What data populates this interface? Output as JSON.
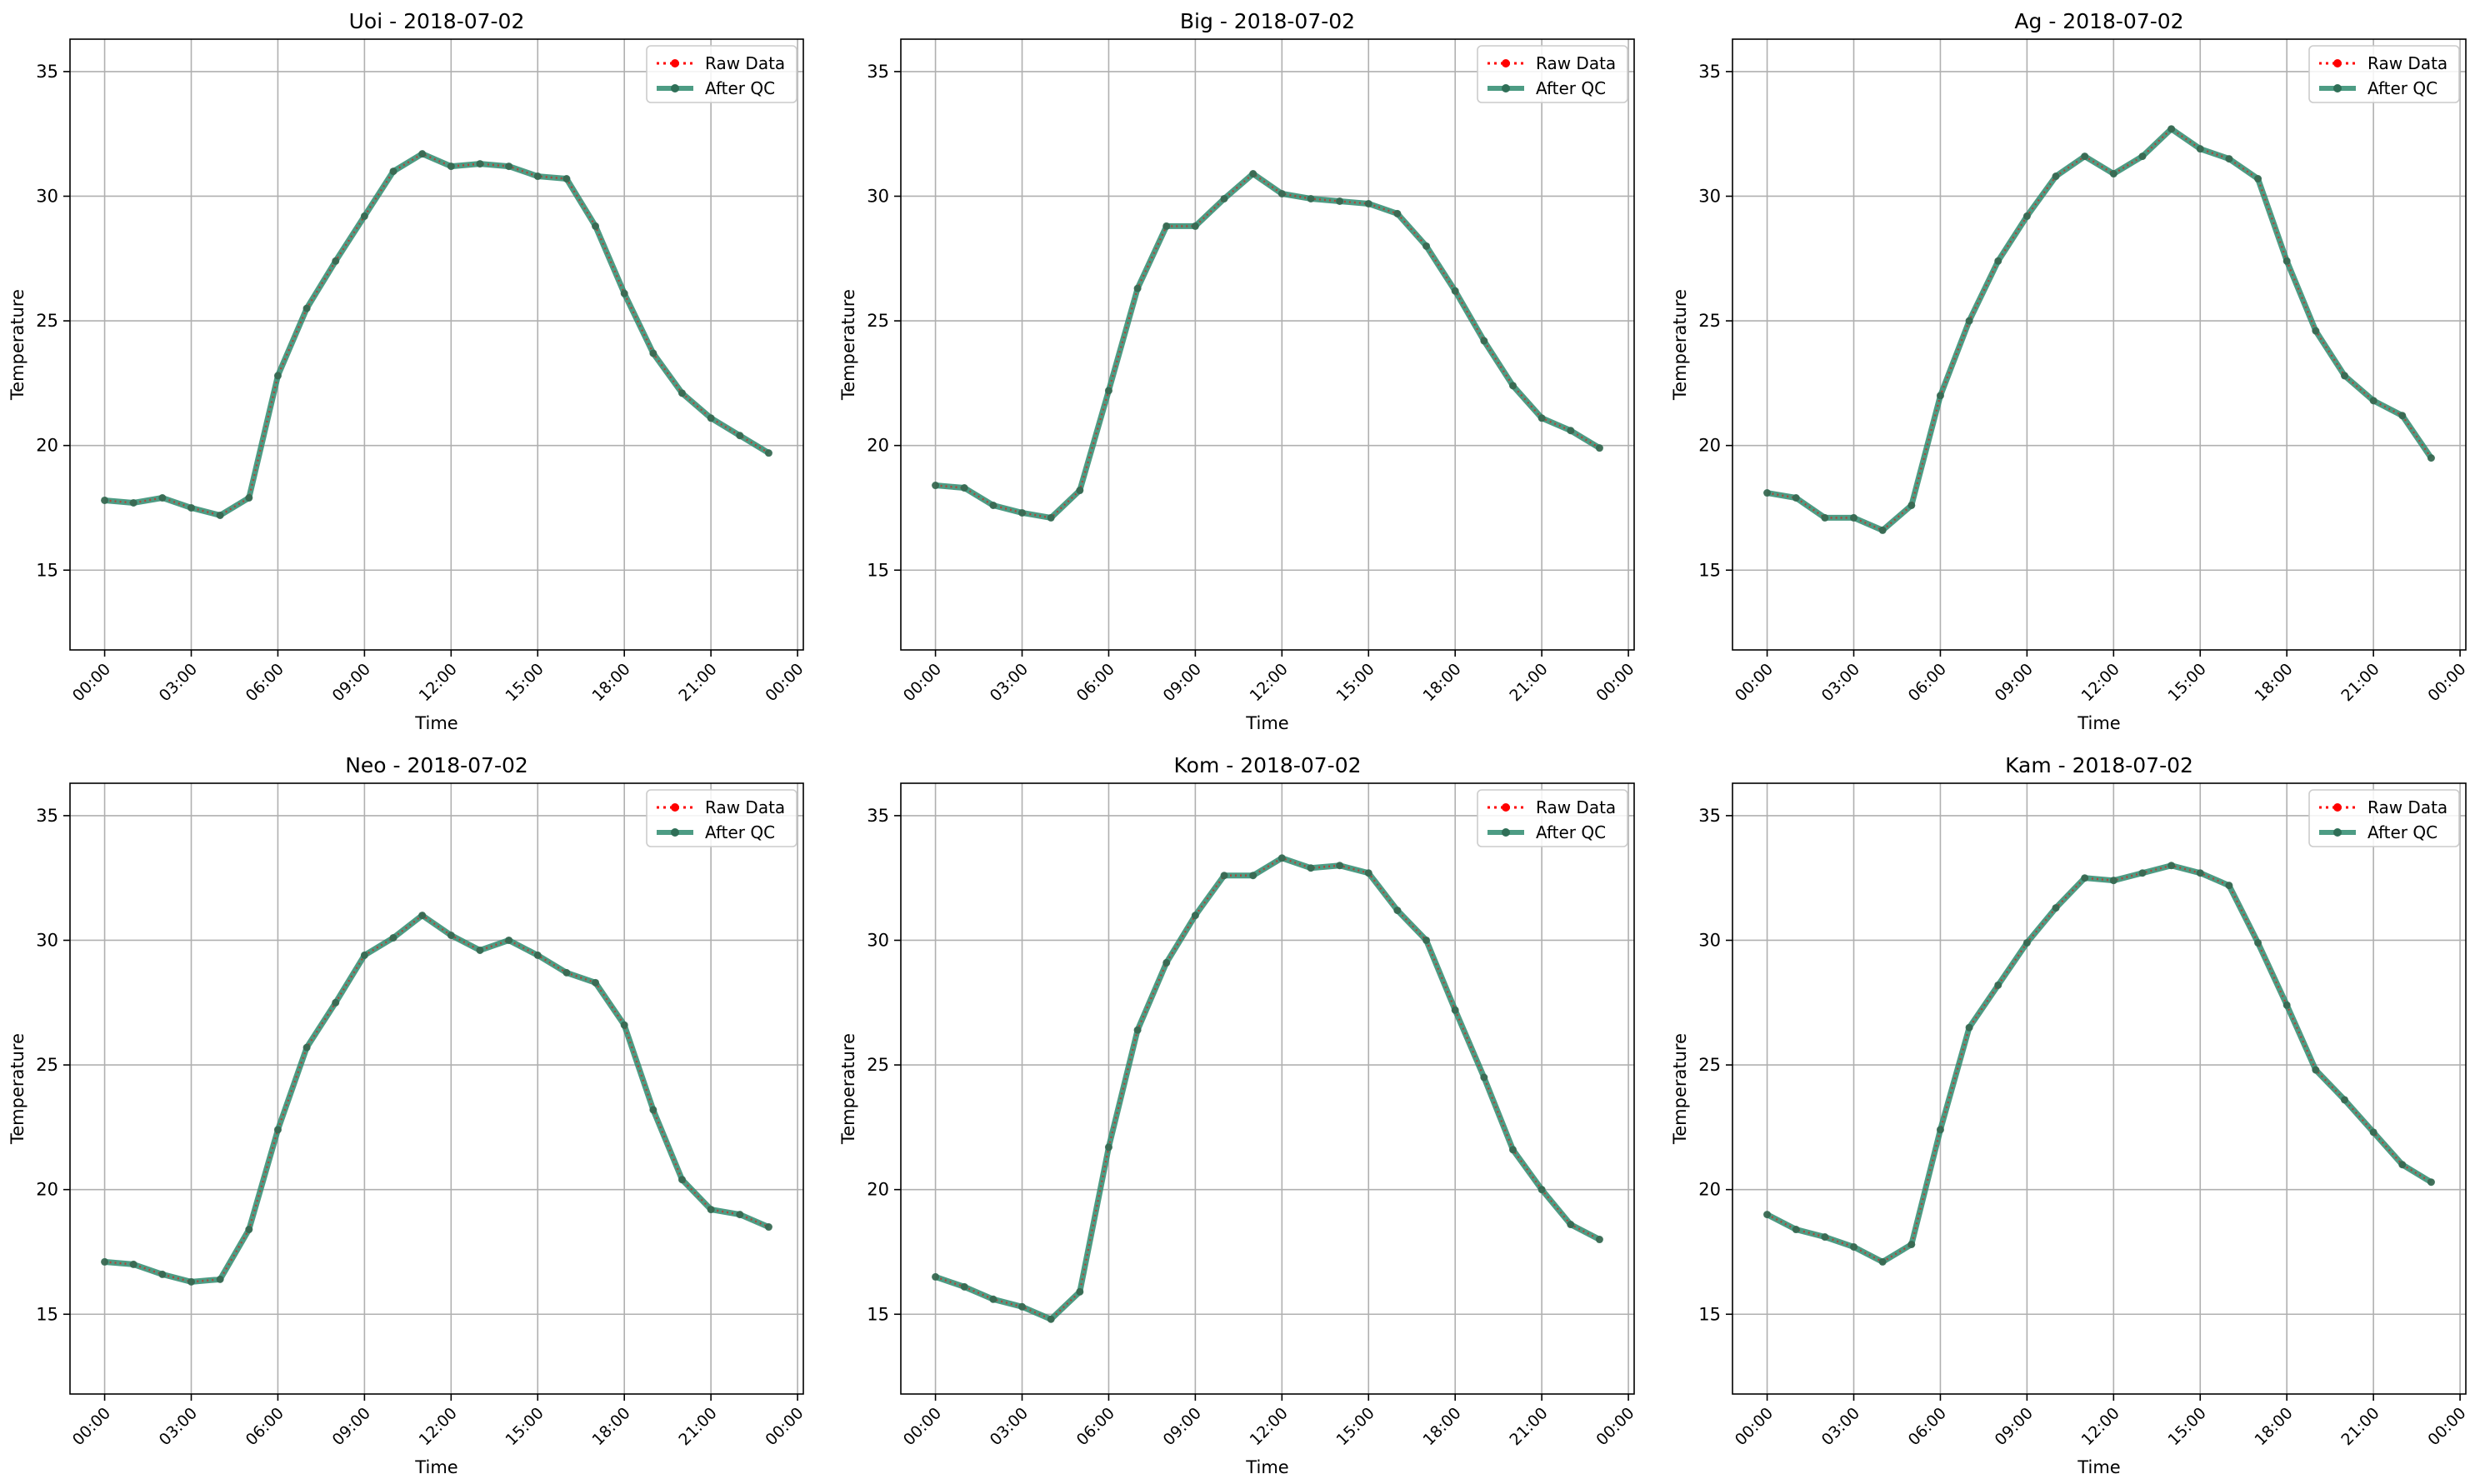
{
  "figure": {
    "legend": {
      "raw_label": "Raw Data",
      "qc_label": "After QC"
    },
    "colors": {
      "raw": "#ff0000",
      "qc": "#2e8b6e",
      "qc_marker": "#2f6f57",
      "grid": "#b0b0b0",
      "axes": "#000000"
    }
  },
  "chart_data": [
    {
      "type": "line",
      "title": "Uoi - 2018-07-02",
      "xlabel": "Time",
      "ylabel": "Temperature",
      "x_ticks": [
        "00:00",
        "03:00",
        "06:00",
        "09:00",
        "12:00",
        "15:00",
        "18:00",
        "21:00",
        "00:00"
      ],
      "y_ticks": [
        "15",
        "20",
        "25",
        "30",
        "35"
      ],
      "xlim": [
        -1.2,
        24.2
      ],
      "ylim": [
        11.8,
        36.3
      ],
      "grid": true,
      "legend_position": "top-right",
      "x": [
        0,
        1,
        2,
        3,
        4,
        5,
        6,
        7,
        8,
        9,
        10,
        11,
        12,
        13,
        14,
        15,
        16,
        17,
        18,
        19,
        20,
        21,
        22,
        23
      ],
      "series": [
        {
          "name": "Raw Data",
          "values": [
            17.8,
            17.7,
            17.9,
            17.5,
            17.2,
            17.9,
            22.8,
            25.5,
            27.4,
            29.2,
            31.0,
            31.7,
            31.2,
            31.3,
            31.2,
            30.8,
            30.7,
            28.8,
            26.1,
            23.7,
            22.1,
            21.1,
            20.4,
            19.7
          ]
        },
        {
          "name": "After QC",
          "values": [
            17.8,
            17.7,
            17.9,
            17.5,
            17.2,
            17.9,
            22.8,
            25.5,
            27.4,
            29.2,
            31.0,
            31.7,
            31.2,
            31.3,
            31.2,
            30.8,
            30.7,
            28.8,
            26.1,
            23.7,
            22.1,
            21.1,
            20.4,
            19.7
          ]
        }
      ]
    },
    {
      "type": "line",
      "title": "Big - 2018-07-02",
      "xlabel": "Time",
      "ylabel": "Temperature",
      "x_ticks": [
        "00:00",
        "03:00",
        "06:00",
        "09:00",
        "12:00",
        "15:00",
        "18:00",
        "21:00",
        "00:00"
      ],
      "y_ticks": [
        "15",
        "20",
        "25",
        "30",
        "35"
      ],
      "xlim": [
        -1.2,
        24.2
      ],
      "ylim": [
        11.8,
        36.3
      ],
      "grid": true,
      "legend_position": "top-right",
      "x": [
        0,
        1,
        2,
        3,
        4,
        5,
        6,
        7,
        8,
        9,
        10,
        11,
        12,
        13,
        14,
        15,
        16,
        17,
        18,
        19,
        20,
        21,
        22,
        23
      ],
      "series": [
        {
          "name": "Raw Data",
          "values": [
            18.4,
            18.3,
            17.6,
            17.3,
            17.1,
            18.2,
            22.2,
            26.3,
            28.8,
            28.8,
            29.9,
            30.9,
            30.1,
            29.9,
            29.8,
            29.7,
            29.3,
            28.0,
            26.2,
            24.2,
            22.4,
            21.1,
            20.6,
            19.9
          ]
        },
        {
          "name": "After QC",
          "values": [
            18.4,
            18.3,
            17.6,
            17.3,
            17.1,
            18.2,
            22.2,
            26.3,
            28.8,
            28.8,
            29.9,
            30.9,
            30.1,
            29.9,
            29.8,
            29.7,
            29.3,
            28.0,
            26.2,
            24.2,
            22.4,
            21.1,
            20.6,
            19.9
          ]
        }
      ]
    },
    {
      "type": "line",
      "title": "Ag - 2018-07-02",
      "xlabel": "Time",
      "ylabel": "Temperature",
      "x_ticks": [
        "00:00",
        "03:00",
        "06:00",
        "09:00",
        "12:00",
        "15:00",
        "18:00",
        "21:00",
        "00:00"
      ],
      "y_ticks": [
        "15",
        "20",
        "25",
        "30",
        "35"
      ],
      "xlim": [
        -1.2,
        24.2
      ],
      "ylim": [
        11.8,
        36.3
      ],
      "grid": true,
      "legend_position": "top-right",
      "x": [
        0,
        1,
        2,
        3,
        4,
        5,
        6,
        7,
        8,
        9,
        10,
        11,
        12,
        13,
        14,
        15,
        16,
        17,
        18,
        19,
        20,
        21,
        22,
        23
      ],
      "series": [
        {
          "name": "Raw Data",
          "values": [
            18.1,
            17.9,
            17.1,
            17.1,
            16.6,
            17.6,
            22.0,
            25.0,
            27.4,
            29.2,
            30.8,
            31.6,
            30.9,
            31.6,
            32.7,
            31.9,
            31.5,
            30.7,
            27.4,
            24.6,
            22.8,
            21.8,
            21.2,
            19.5
          ]
        },
        {
          "name": "After QC",
          "values": [
            18.1,
            17.9,
            17.1,
            17.1,
            16.6,
            17.6,
            22.0,
            25.0,
            27.4,
            29.2,
            30.8,
            31.6,
            30.9,
            31.6,
            32.7,
            31.9,
            31.5,
            30.7,
            27.4,
            24.6,
            22.8,
            21.8,
            21.2,
            19.5
          ]
        }
      ]
    },
    {
      "type": "line",
      "title": "Neo - 2018-07-02",
      "xlabel": "Time",
      "ylabel": "Temperature",
      "x_ticks": [
        "00:00",
        "03:00",
        "06:00",
        "09:00",
        "12:00",
        "15:00",
        "18:00",
        "21:00",
        "00:00"
      ],
      "y_ticks": [
        "15",
        "20",
        "25",
        "30",
        "35"
      ],
      "xlim": [
        -1.2,
        24.2
      ],
      "ylim": [
        11.8,
        36.3
      ],
      "grid": true,
      "legend_position": "top-right",
      "x": [
        0,
        1,
        2,
        3,
        4,
        5,
        6,
        7,
        8,
        9,
        10,
        11,
        12,
        13,
        14,
        15,
        16,
        17,
        18,
        19,
        20,
        21,
        22,
        23
      ],
      "series": [
        {
          "name": "Raw Data",
          "values": [
            17.1,
            17.0,
            16.6,
            16.3,
            16.4,
            18.4,
            22.4,
            25.7,
            27.5,
            29.4,
            30.1,
            31.0,
            30.2,
            29.6,
            30.0,
            29.4,
            28.7,
            28.3,
            26.6,
            23.2,
            20.4,
            19.2,
            19.0,
            18.5
          ]
        },
        {
          "name": "After QC",
          "values": [
            17.1,
            17.0,
            16.6,
            16.3,
            16.4,
            18.4,
            22.4,
            25.7,
            27.5,
            29.4,
            30.1,
            31.0,
            30.2,
            29.6,
            30.0,
            29.4,
            28.7,
            28.3,
            26.6,
            23.2,
            20.4,
            19.2,
            19.0,
            18.5
          ]
        }
      ]
    },
    {
      "type": "line",
      "title": "Kom - 2018-07-02",
      "xlabel": "Time",
      "ylabel": "Temperature",
      "x_ticks": [
        "00:00",
        "03:00",
        "06:00",
        "09:00",
        "12:00",
        "15:00",
        "18:00",
        "21:00",
        "00:00"
      ],
      "y_ticks": [
        "15",
        "20",
        "25",
        "30",
        "35"
      ],
      "xlim": [
        -1.2,
        24.2
      ],
      "ylim": [
        11.8,
        36.3
      ],
      "grid": true,
      "legend_position": "top-right",
      "x": [
        0,
        1,
        2,
        3,
        4,
        5,
        6,
        7,
        8,
        9,
        10,
        11,
        12,
        13,
        14,
        15,
        16,
        17,
        18,
        19,
        20,
        21,
        22,
        23
      ],
      "series": [
        {
          "name": "Raw Data",
          "values": [
            16.5,
            16.1,
            15.6,
            15.3,
            14.8,
            15.9,
            21.7,
            26.4,
            29.1,
            31.0,
            32.6,
            32.6,
            33.3,
            32.9,
            33.0,
            32.7,
            31.2,
            30.0,
            27.2,
            24.5,
            21.6,
            20.0,
            18.6,
            18.0
          ]
        },
        {
          "name": "After QC",
          "values": [
            16.5,
            16.1,
            15.6,
            15.3,
            14.8,
            15.9,
            21.7,
            26.4,
            29.1,
            31.0,
            32.6,
            32.6,
            33.3,
            32.9,
            33.0,
            32.7,
            31.2,
            30.0,
            27.2,
            24.5,
            21.6,
            20.0,
            18.6,
            18.0
          ]
        }
      ]
    },
    {
      "type": "line",
      "title": "Kam - 2018-07-02",
      "xlabel": "Time",
      "ylabel": "Temperature",
      "x_ticks": [
        "00:00",
        "03:00",
        "06:00",
        "09:00",
        "12:00",
        "15:00",
        "18:00",
        "21:00",
        "00:00"
      ],
      "y_ticks": [
        "15",
        "20",
        "25",
        "30",
        "35"
      ],
      "xlim": [
        -1.2,
        24.2
      ],
      "ylim": [
        11.8,
        36.3
      ],
      "grid": true,
      "legend_position": "top-right",
      "x": [
        0,
        1,
        2,
        3,
        4,
        5,
        6,
        7,
        8,
        9,
        10,
        11,
        12,
        13,
        14,
        15,
        16,
        17,
        18,
        19,
        20,
        21,
        22,
        23
      ],
      "series": [
        {
          "name": "Raw Data",
          "values": [
            19.0,
            18.4,
            18.1,
            17.7,
            17.1,
            17.8,
            22.4,
            26.5,
            28.2,
            29.9,
            31.3,
            32.5,
            32.4,
            32.7,
            33.0,
            32.7,
            32.2,
            29.9,
            27.4,
            24.8,
            23.6,
            22.3,
            21.0,
            20.3
          ]
        },
        {
          "name": "After QC",
          "values": [
            19.0,
            18.4,
            18.1,
            17.7,
            17.1,
            17.8,
            22.4,
            26.5,
            28.2,
            29.9,
            31.3,
            32.5,
            32.4,
            32.7,
            33.0,
            32.7,
            32.2,
            29.9,
            27.4,
            24.8,
            23.6,
            22.3,
            21.0,
            20.3
          ]
        }
      ]
    }
  ]
}
